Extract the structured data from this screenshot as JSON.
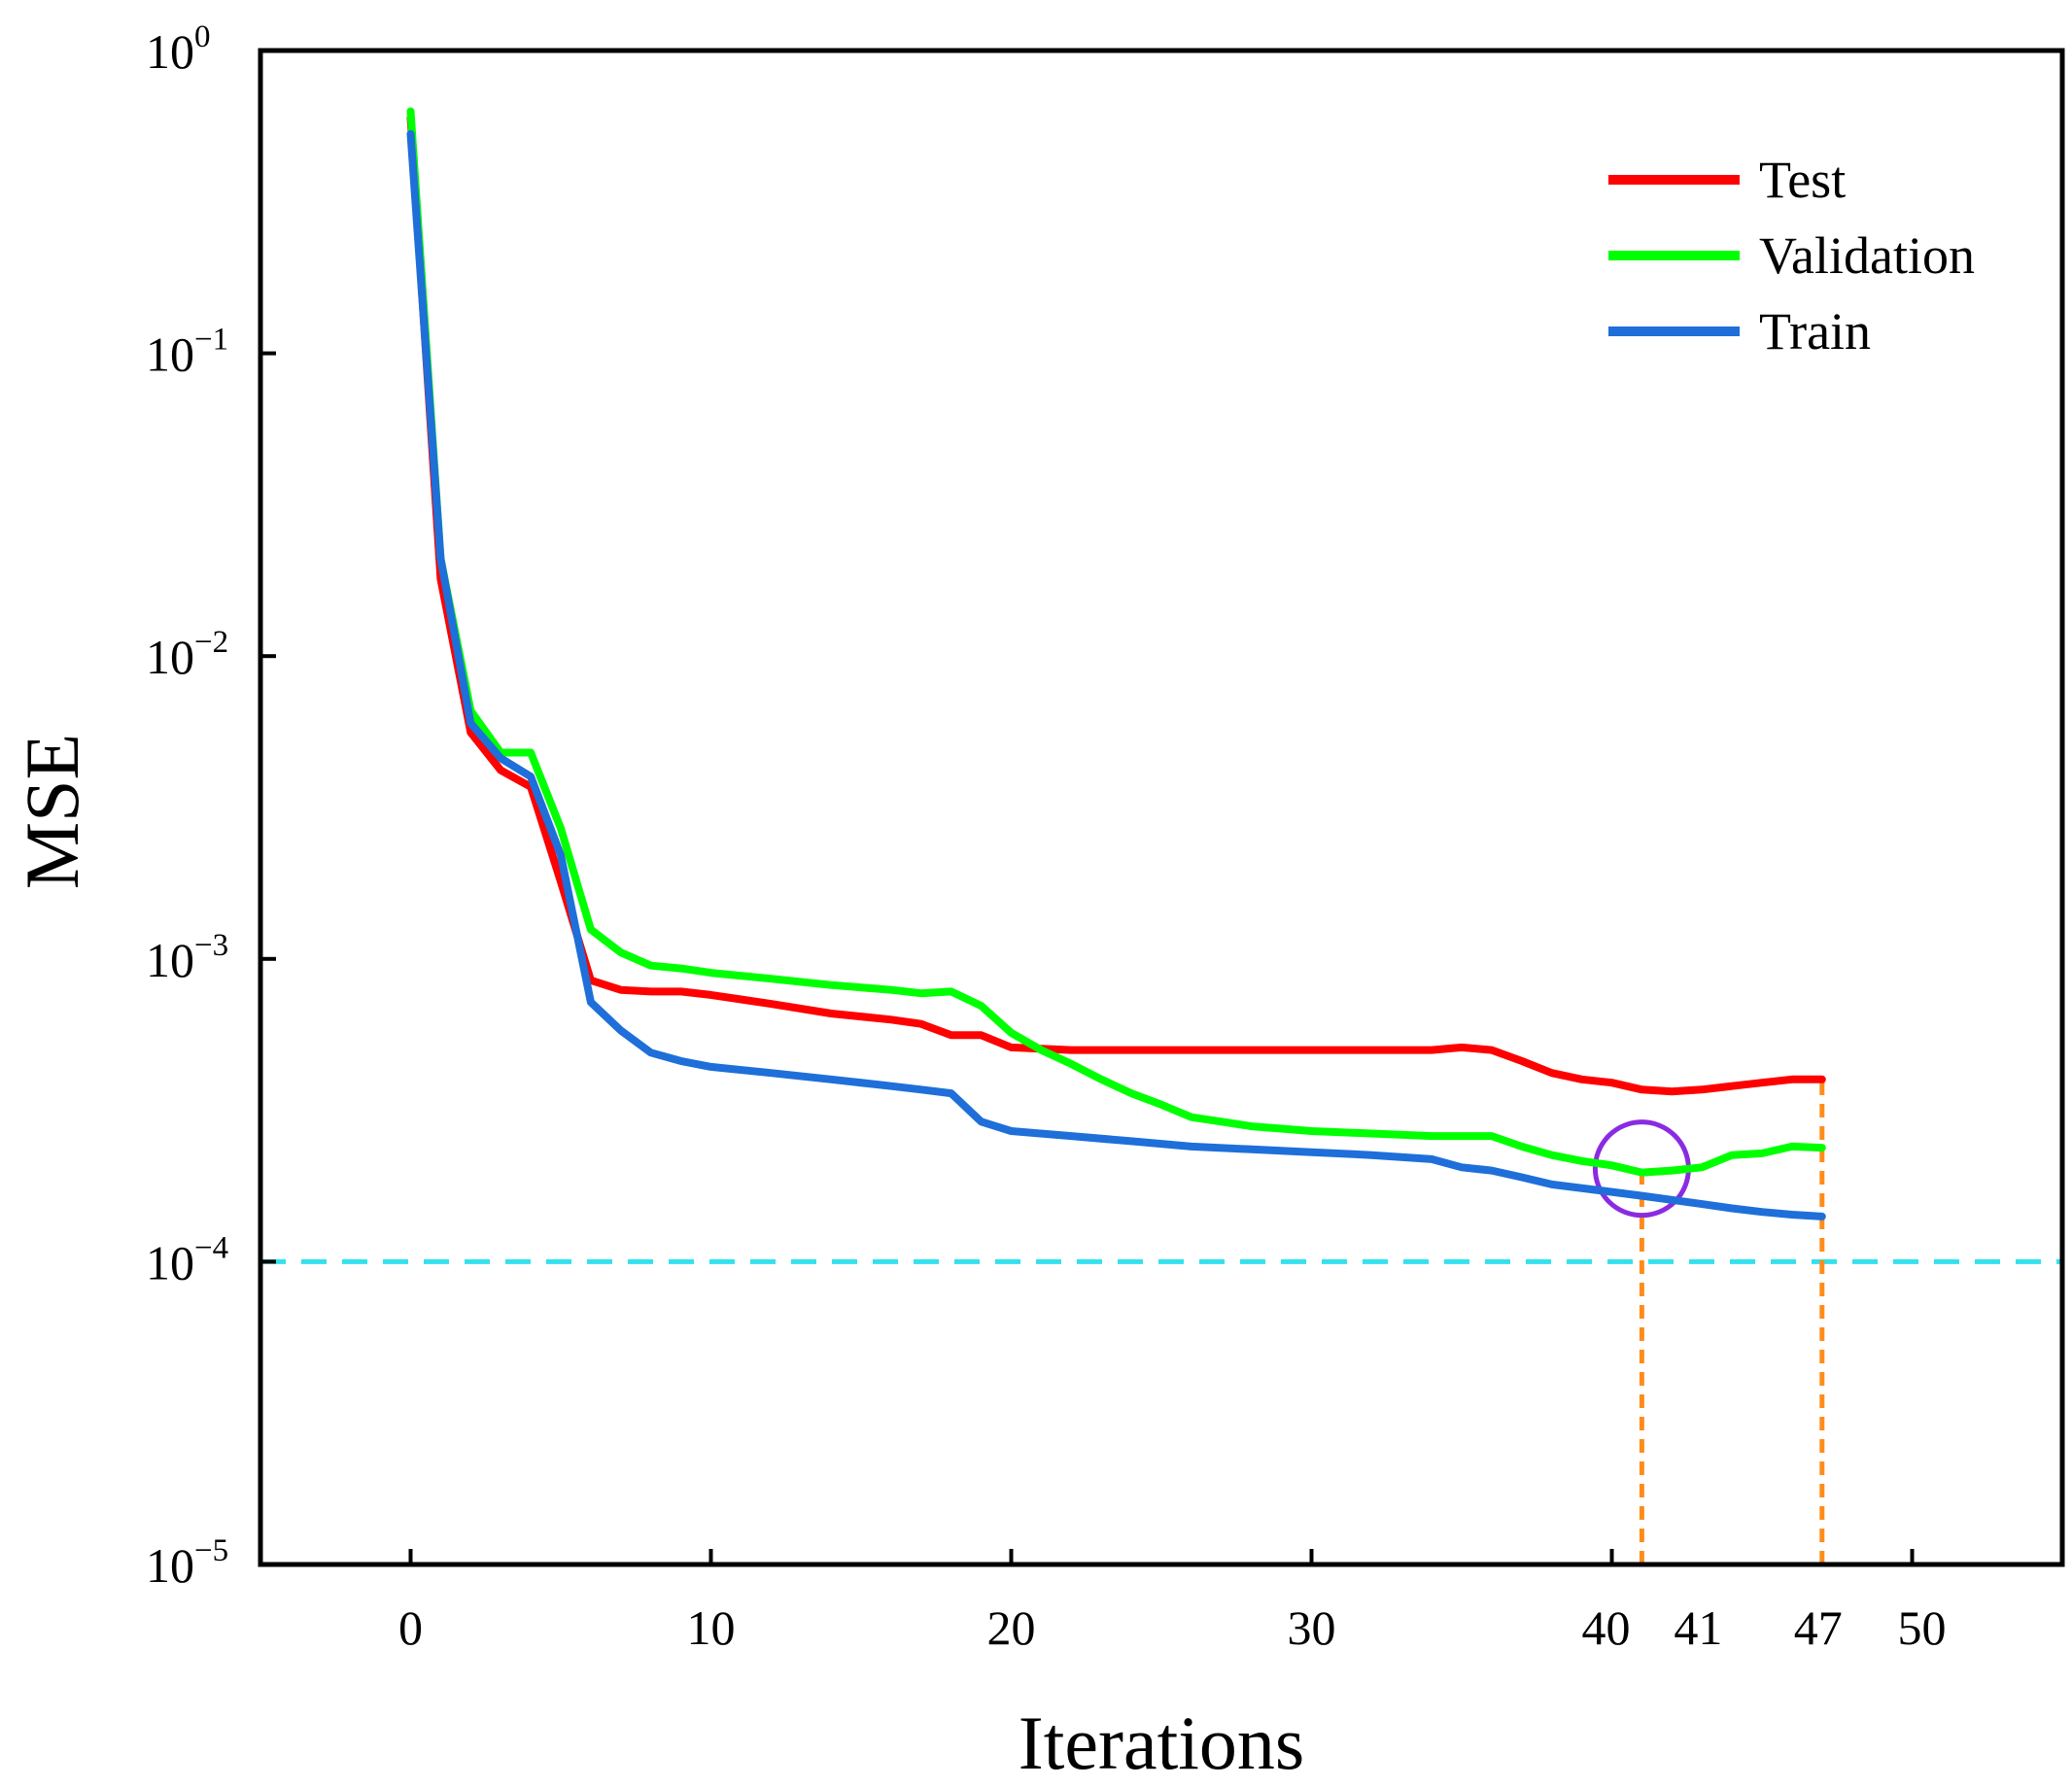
{
  "chart_data": {
    "type": "line",
    "title": "",
    "xlabel": "Iterations",
    "ylabel": "MSE",
    "xlim": [
      -5,
      55
    ],
    "ylim": [
      1e-05,
      1
    ],
    "yscale": "log",
    "x_ticks": [
      0,
      10,
      20,
      30,
      40,
      41,
      47,
      50
    ],
    "y_ticks": [
      {
        "value": 1,
        "base": "10",
        "exp": "0"
      },
      {
        "value": 0.1,
        "base": "10",
        "exp": "−1"
      },
      {
        "value": 0.01,
        "base": "10",
        "exp": "−2"
      },
      {
        "value": 0.001,
        "base": "10",
        "exp": "−3"
      },
      {
        "value": 0.0001,
        "base": "10",
        "exp": "−4"
      },
      {
        "value": 1e-05,
        "base": "10",
        "exp": "−5"
      }
    ],
    "grid": false,
    "legend_position": "top-right",
    "series": [
      {
        "name": "Test",
        "color": "#ff0000",
        "points": [
          [
            0,
            0.6
          ],
          [
            1,
            0.018
          ],
          [
            2,
            0.0056
          ],
          [
            3,
            0.0042
          ],
          [
            4,
            0.0037
          ],
          [
            5,
            0.0018
          ],
          [
            6,
            0.00085
          ],
          [
            7,
            0.00079
          ],
          [
            8,
            0.00078
          ],
          [
            9,
            0.00078
          ],
          [
            10,
            0.00076
          ],
          [
            12,
            0.00071
          ],
          [
            14,
            0.00066
          ],
          [
            16,
            0.00063
          ],
          [
            17,
            0.00061
          ],
          [
            18,
            0.00056
          ],
          [
            19,
            0.00056
          ],
          [
            20,
            0.00051
          ],
          [
            22,
            0.0005
          ],
          [
            25,
            0.0005
          ],
          [
            28,
            0.0005
          ],
          [
            30,
            0.0005
          ],
          [
            32,
            0.0005
          ],
          [
            34,
            0.0005
          ],
          [
            35,
            0.00051
          ],
          [
            36,
            0.0005
          ],
          [
            37,
            0.00046
          ],
          [
            38,
            0.00042
          ],
          [
            39,
            0.0004
          ],
          [
            40,
            0.00039
          ],
          [
            41,
            0.00037
          ],
          [
            42,
            0.000365
          ],
          [
            43,
            0.00037
          ],
          [
            44,
            0.00038
          ],
          [
            45,
            0.00039
          ],
          [
            46,
            0.0004
          ],
          [
            47,
            0.0004
          ]
        ]
      },
      {
        "name": "Validation",
        "color": "#00ff00",
        "points": [
          [
            0,
            0.63
          ],
          [
            1,
            0.021
          ],
          [
            2,
            0.0066
          ],
          [
            3,
            0.0048
          ],
          [
            4,
            0.0048
          ],
          [
            5,
            0.0027
          ],
          [
            6,
            0.00125
          ],
          [
            7,
            0.00105
          ],
          [
            8,
            0.00095
          ],
          [
            9,
            0.00093
          ],
          [
            10,
            0.0009
          ],
          [
            12,
            0.00086
          ],
          [
            14,
            0.00082
          ],
          [
            16,
            0.00079
          ],
          [
            17,
            0.00077
          ],
          [
            18,
            0.00078
          ],
          [
            19,
            0.0007
          ],
          [
            20,
            0.00057
          ],
          [
            21,
            0.0005
          ],
          [
            22,
            0.00045
          ],
          [
            23,
            0.0004
          ],
          [
            24,
            0.00036
          ],
          [
            25,
            0.00033
          ],
          [
            26,
            0.0003
          ],
          [
            27,
            0.00029
          ],
          [
            28,
            0.00028
          ],
          [
            29,
            0.000275
          ],
          [
            30,
            0.00027
          ],
          [
            32,
            0.000265
          ],
          [
            34,
            0.00026
          ],
          [
            35,
            0.00026
          ],
          [
            36,
            0.00026
          ],
          [
            37,
            0.00024
          ],
          [
            38,
            0.000225
          ],
          [
            39,
            0.000215
          ],
          [
            40,
            0.000208
          ],
          [
            41,
            0.000197
          ],
          [
            42,
            0.0002
          ],
          [
            43,
            0.000205
          ],
          [
            44,
            0.000225
          ],
          [
            45,
            0.000228
          ],
          [
            46,
            0.00024
          ],
          [
            47,
            0.000238
          ]
        ]
      },
      {
        "name": "Train",
        "color": "#1e6fd9",
        "points": [
          [
            0,
            0.53
          ],
          [
            1,
            0.021
          ],
          [
            2,
            0.006
          ],
          [
            3,
            0.0046
          ],
          [
            4,
            0.004
          ],
          [
            5,
            0.0022
          ],
          [
            6,
            0.00072
          ],
          [
            7,
            0.00058
          ],
          [
            8,
            0.00049
          ],
          [
            9,
            0.00046
          ],
          [
            10,
            0.00044
          ],
          [
            12,
            0.00042
          ],
          [
            14,
            0.0004
          ],
          [
            16,
            0.00038
          ],
          [
            17,
            0.00037
          ],
          [
            18,
            0.00036
          ],
          [
            19,
            0.00029
          ],
          [
            20,
            0.00027
          ],
          [
            22,
            0.00026
          ],
          [
            24,
            0.00025
          ],
          [
            26,
            0.00024
          ],
          [
            28,
            0.000235
          ],
          [
            30,
            0.00023
          ],
          [
            32,
            0.000225
          ],
          [
            34,
            0.000218
          ],
          [
            35,
            0.000205
          ],
          [
            36,
            0.0002
          ],
          [
            37,
            0.00019
          ],
          [
            38,
            0.00018
          ],
          [
            40,
            0.00017
          ],
          [
            41,
            0.000165
          ],
          [
            42,
            0.00016
          ],
          [
            43,
            0.000155
          ],
          [
            44,
            0.00015
          ],
          [
            45,
            0.000146
          ],
          [
            46,
            0.000143
          ],
          [
            47,
            0.000141
          ]
        ]
      }
    ],
    "annotations": [
      {
        "type": "hline",
        "y": 0.0001,
        "color": "#33e1ee",
        "style": "dashed"
      },
      {
        "type": "vline",
        "x": 41,
        "y_top": 0.000197,
        "color": "#ff8c1a",
        "style": "dashed"
      },
      {
        "type": "vline",
        "x": 47,
        "y_top": 0.0004,
        "color": "#ff8c1a",
        "style": "dashed"
      },
      {
        "type": "circle",
        "x": 41,
        "y": 0.000197,
        "color": "#8a2be2"
      }
    ]
  }
}
